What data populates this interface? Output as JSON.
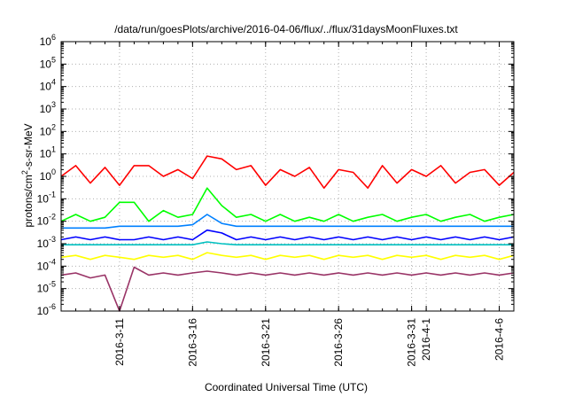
{
  "chart_data": {
    "type": "line",
    "title": "/data/run/goesPlots/archive/2016-04-06/flux/../flux/31daysMoonFluxes.txt",
    "xlabel": "Coordinated Universal Time (UTC)",
    "ylabel": "protons/cm2-s-sr-MeV",
    "ylabel_parts": {
      "base": "protons/cm",
      "sup": "2",
      "tail": "-s-sr-MeV"
    },
    "yscale": "log",
    "ylim_exponents": [
      -6,
      6
    ],
    "y_ticks": [
      {
        "exp": -6,
        "label": "10",
        "sup": "-6"
      },
      {
        "exp": -5,
        "label": "10",
        "sup": "-5"
      },
      {
        "exp": -4,
        "label": "10",
        "sup": "-4"
      },
      {
        "exp": -3,
        "label": "10",
        "sup": "-3"
      },
      {
        "exp": -2,
        "label": "10",
        "sup": "-2"
      },
      {
        "exp": -1,
        "label": "10",
        "sup": "-1"
      },
      {
        "exp": 0,
        "label": "10",
        "sup": "0"
      },
      {
        "exp": 1,
        "label": "10",
        "sup": "1"
      },
      {
        "exp": 2,
        "label": "10",
        "sup": "2"
      },
      {
        "exp": 3,
        "label": "10",
        "sup": "3"
      },
      {
        "exp": 4,
        "label": "10",
        "sup": "4"
      },
      {
        "exp": 5,
        "label": "10",
        "sup": "5"
      },
      {
        "exp": 6,
        "label": "10",
        "sup": "6"
      }
    ],
    "xlim": [
      "2016-03-07",
      "2016-04-07"
    ],
    "x_ticks": [
      "2016-3-11",
      "2016-3-16",
      "2016-3-21",
      "2016-3-26",
      "2016-3-31",
      "2016-4-1",
      "2016-4-6"
    ],
    "grid": true,
    "legend": "none",
    "series": [
      {
        "color": "#ff0000",
        "values": [
          [
            "2016-03-07",
            1.0
          ],
          [
            "2016-03-08",
            3.0
          ],
          [
            "2016-03-09",
            0.5
          ],
          [
            "2016-03-10",
            2.5
          ],
          [
            "2016-03-11",
            0.4
          ],
          [
            "2016-03-12",
            3.0
          ],
          [
            "2016-03-13",
            3.0
          ],
          [
            "2016-03-14",
            1.0
          ],
          [
            "2016-03-15",
            2.0
          ],
          [
            "2016-03-16",
            0.8
          ],
          [
            "2016-03-17",
            8.0
          ],
          [
            "2016-03-18",
            6.0
          ],
          [
            "2016-03-19",
            2.0
          ],
          [
            "2016-03-20",
            3.0
          ],
          [
            "2016-03-21",
            0.4
          ],
          [
            "2016-03-22",
            2.0
          ],
          [
            "2016-03-23",
            1.0
          ],
          [
            "2016-03-24",
            2.5
          ],
          [
            "2016-03-25",
            0.3
          ],
          [
            "2016-03-26",
            2.0
          ],
          [
            "2016-03-27",
            1.5
          ],
          [
            "2016-03-28",
            0.3
          ],
          [
            "2016-03-29",
            3.0
          ],
          [
            "2016-03-30",
            0.5
          ],
          [
            "2016-03-31",
            2.0
          ],
          [
            "2016-04-01",
            1.0
          ],
          [
            "2016-04-02",
            3.0
          ],
          [
            "2016-04-03",
            0.5
          ],
          [
            "2016-04-04",
            1.5
          ],
          [
            "2016-04-05",
            2.0
          ],
          [
            "2016-04-06",
            0.4
          ],
          [
            "2016-04-07",
            1.5
          ]
        ]
      },
      {
        "color": "#00ff00",
        "values": [
          [
            "2016-03-07",
            0.01
          ],
          [
            "2016-03-08",
            0.02
          ],
          [
            "2016-03-09",
            0.01
          ],
          [
            "2016-03-10",
            0.015
          ],
          [
            "2016-03-11",
            0.07
          ],
          [
            "2016-03-12",
            0.07
          ],
          [
            "2016-03-13",
            0.01
          ],
          [
            "2016-03-14",
            0.03
          ],
          [
            "2016-03-15",
            0.015
          ],
          [
            "2016-03-16",
            0.02
          ],
          [
            "2016-03-17",
            0.3
          ],
          [
            "2016-03-18",
            0.05
          ],
          [
            "2016-03-19",
            0.015
          ],
          [
            "2016-03-20",
            0.02
          ],
          [
            "2016-03-21",
            0.01
          ],
          [
            "2016-03-22",
            0.02
          ],
          [
            "2016-03-23",
            0.01
          ],
          [
            "2016-03-24",
            0.015
          ],
          [
            "2016-03-25",
            0.01
          ],
          [
            "2016-03-26",
            0.02
          ],
          [
            "2016-03-27",
            0.01
          ],
          [
            "2016-03-28",
            0.015
          ],
          [
            "2016-03-29",
            0.02
          ],
          [
            "2016-03-30",
            0.01
          ],
          [
            "2016-03-31",
            0.015
          ],
          [
            "2016-04-01",
            0.02
          ],
          [
            "2016-04-02",
            0.01
          ],
          [
            "2016-04-03",
            0.015
          ],
          [
            "2016-04-04",
            0.02
          ],
          [
            "2016-04-05",
            0.01
          ],
          [
            "2016-04-06",
            0.015
          ],
          [
            "2016-04-07",
            0.02
          ]
        ]
      },
      {
        "color": "#0080ff",
        "values": [
          [
            "2016-03-07",
            0.005
          ],
          [
            "2016-03-08",
            0.005
          ],
          [
            "2016-03-09",
            0.005
          ],
          [
            "2016-03-10",
            0.005
          ],
          [
            "2016-03-11",
            0.006
          ],
          [
            "2016-03-12",
            0.006
          ],
          [
            "2016-03-13",
            0.006
          ],
          [
            "2016-03-14",
            0.006
          ],
          [
            "2016-03-15",
            0.006
          ],
          [
            "2016-03-16",
            0.007
          ],
          [
            "2016-03-17",
            0.02
          ],
          [
            "2016-03-18",
            0.008
          ],
          [
            "2016-03-19",
            0.006
          ],
          [
            "2016-03-20",
            0.006
          ],
          [
            "2016-03-21",
            0.006
          ],
          [
            "2016-03-22",
            0.006
          ],
          [
            "2016-03-23",
            0.006
          ],
          [
            "2016-03-24",
            0.006
          ],
          [
            "2016-03-25",
            0.006
          ],
          [
            "2016-03-26",
            0.006
          ],
          [
            "2016-03-27",
            0.006
          ],
          [
            "2016-03-28",
            0.006
          ],
          [
            "2016-03-29",
            0.006
          ],
          [
            "2016-03-30",
            0.006
          ],
          [
            "2016-03-31",
            0.006
          ],
          [
            "2016-04-01",
            0.006
          ],
          [
            "2016-04-02",
            0.006
          ],
          [
            "2016-04-03",
            0.006
          ],
          [
            "2016-04-04",
            0.006
          ],
          [
            "2016-04-05",
            0.006
          ],
          [
            "2016-04-06",
            0.006
          ],
          [
            "2016-04-07",
            0.006
          ]
        ]
      },
      {
        "color": "#0000ff",
        "values": [
          [
            "2016-03-07",
            0.0015
          ],
          [
            "2016-03-08",
            0.002
          ],
          [
            "2016-03-09",
            0.0015
          ],
          [
            "2016-03-10",
            0.002
          ],
          [
            "2016-03-11",
            0.0015
          ],
          [
            "2016-03-12",
            0.0015
          ],
          [
            "2016-03-13",
            0.002
          ],
          [
            "2016-03-14",
            0.0015
          ],
          [
            "2016-03-15",
            0.002
          ],
          [
            "2016-03-16",
            0.0015
          ],
          [
            "2016-03-17",
            0.004
          ],
          [
            "2016-03-18",
            0.003
          ],
          [
            "2016-03-19",
            0.0015
          ],
          [
            "2016-03-20",
            0.002
          ],
          [
            "2016-03-21",
            0.0015
          ],
          [
            "2016-03-22",
            0.002
          ],
          [
            "2016-03-23",
            0.0015
          ],
          [
            "2016-03-24",
            0.002
          ],
          [
            "2016-03-25",
            0.0015
          ],
          [
            "2016-03-26",
            0.002
          ],
          [
            "2016-03-27",
            0.0015
          ],
          [
            "2016-03-28",
            0.002
          ],
          [
            "2016-03-29",
            0.0015
          ],
          [
            "2016-03-30",
            0.002
          ],
          [
            "2016-03-31",
            0.0015
          ],
          [
            "2016-04-01",
            0.002
          ],
          [
            "2016-04-02",
            0.0015
          ],
          [
            "2016-04-03",
            0.002
          ],
          [
            "2016-04-04",
            0.0015
          ],
          [
            "2016-04-05",
            0.002
          ],
          [
            "2016-04-06",
            0.0015
          ],
          [
            "2016-04-07",
            0.002
          ]
        ]
      },
      {
        "color": "#00c0c0",
        "values": [
          [
            "2016-03-07",
            0.0009
          ],
          [
            "2016-03-08",
            0.0009
          ],
          [
            "2016-03-09",
            0.0009
          ],
          [
            "2016-03-10",
            0.0009
          ],
          [
            "2016-03-11",
            0.0009
          ],
          [
            "2016-03-12",
            0.0009
          ],
          [
            "2016-03-13",
            0.0009
          ],
          [
            "2016-03-14",
            0.0009
          ],
          [
            "2016-03-15",
            0.0009
          ],
          [
            "2016-03-16",
            0.0009
          ],
          [
            "2016-03-17",
            0.0012
          ],
          [
            "2016-03-18",
            0.001
          ],
          [
            "2016-03-19",
            0.0009
          ],
          [
            "2016-03-20",
            0.0009
          ],
          [
            "2016-03-21",
            0.0009
          ],
          [
            "2016-03-22",
            0.0009
          ],
          [
            "2016-03-23",
            0.0009
          ],
          [
            "2016-03-24",
            0.0009
          ],
          [
            "2016-03-25",
            0.0009
          ],
          [
            "2016-03-26",
            0.0009
          ],
          [
            "2016-03-27",
            0.0009
          ],
          [
            "2016-03-28",
            0.0009
          ],
          [
            "2016-03-29",
            0.0009
          ],
          [
            "2016-03-30",
            0.0009
          ],
          [
            "2016-03-31",
            0.0009
          ],
          [
            "2016-04-01",
            0.0009
          ],
          [
            "2016-04-02",
            0.0009
          ],
          [
            "2016-04-03",
            0.0009
          ],
          [
            "2016-04-04",
            0.0009
          ],
          [
            "2016-04-05",
            0.0009
          ],
          [
            "2016-04-06",
            0.0009
          ],
          [
            "2016-04-07",
            0.0009
          ]
        ]
      },
      {
        "color": "#ffff00",
        "values": [
          [
            "2016-03-07",
            0.00025
          ],
          [
            "2016-03-08",
            0.0003
          ],
          [
            "2016-03-09",
            0.0002
          ],
          [
            "2016-03-10",
            0.0003
          ],
          [
            "2016-03-11",
            0.00025
          ],
          [
            "2016-03-12",
            0.0002
          ],
          [
            "2016-03-13",
            0.0003
          ],
          [
            "2016-03-14",
            0.00025
          ],
          [
            "2016-03-15",
            0.0003
          ],
          [
            "2016-03-16",
            0.0002
          ],
          [
            "2016-03-17",
            0.0004
          ],
          [
            "2016-03-18",
            0.0003
          ],
          [
            "2016-03-19",
            0.00025
          ],
          [
            "2016-03-20",
            0.0003
          ],
          [
            "2016-03-21",
            0.0002
          ],
          [
            "2016-03-22",
            0.0003
          ],
          [
            "2016-03-23",
            0.00025
          ],
          [
            "2016-03-24",
            0.0003
          ],
          [
            "2016-03-25",
            0.0002
          ],
          [
            "2016-03-26",
            0.0003
          ],
          [
            "2016-03-27",
            0.00025
          ],
          [
            "2016-03-28",
            0.0003
          ],
          [
            "2016-03-29",
            0.0002
          ],
          [
            "2016-03-30",
            0.0003
          ],
          [
            "2016-03-31",
            0.00025
          ],
          [
            "2016-04-01",
            0.0003
          ],
          [
            "2016-04-02",
            0.0002
          ],
          [
            "2016-04-03",
            0.0003
          ],
          [
            "2016-04-04",
            0.00025
          ],
          [
            "2016-04-05",
            0.0003
          ],
          [
            "2016-04-06",
            0.0002
          ],
          [
            "2016-04-07",
            0.0003
          ]
        ]
      },
      {
        "color": "#993366",
        "values": [
          [
            "2016-03-07",
            4e-05
          ],
          [
            "2016-03-08",
            5e-05
          ],
          [
            "2016-03-09",
            3e-05
          ],
          [
            "2016-03-10",
            4e-05
          ],
          [
            "2016-03-11",
            8e-07
          ],
          [
            "2016-03-12",
            9e-05
          ],
          [
            "2016-03-13",
            4e-05
          ],
          [
            "2016-03-14",
            5e-05
          ],
          [
            "2016-03-15",
            4e-05
          ],
          [
            "2016-03-16",
            5e-05
          ],
          [
            "2016-03-17",
            6e-05
          ],
          [
            "2016-03-18",
            5e-05
          ],
          [
            "2016-03-19",
            4e-05
          ],
          [
            "2016-03-20",
            5e-05
          ],
          [
            "2016-03-21",
            4e-05
          ],
          [
            "2016-03-22",
            5e-05
          ],
          [
            "2016-03-23",
            4e-05
          ],
          [
            "2016-03-24",
            5e-05
          ],
          [
            "2016-03-25",
            4e-05
          ],
          [
            "2016-03-26",
            5e-05
          ],
          [
            "2016-03-27",
            4e-05
          ],
          [
            "2016-03-28",
            5e-05
          ],
          [
            "2016-03-29",
            4e-05
          ],
          [
            "2016-03-30",
            5e-05
          ],
          [
            "2016-03-31",
            4e-05
          ],
          [
            "2016-04-01",
            5e-05
          ],
          [
            "2016-04-02",
            4e-05
          ],
          [
            "2016-04-03",
            5e-05
          ],
          [
            "2016-04-04",
            4e-05
          ],
          [
            "2016-04-05",
            5e-05
          ],
          [
            "2016-04-06",
            4e-05
          ],
          [
            "2016-04-07",
            5e-05
          ]
        ]
      }
    ]
  }
}
